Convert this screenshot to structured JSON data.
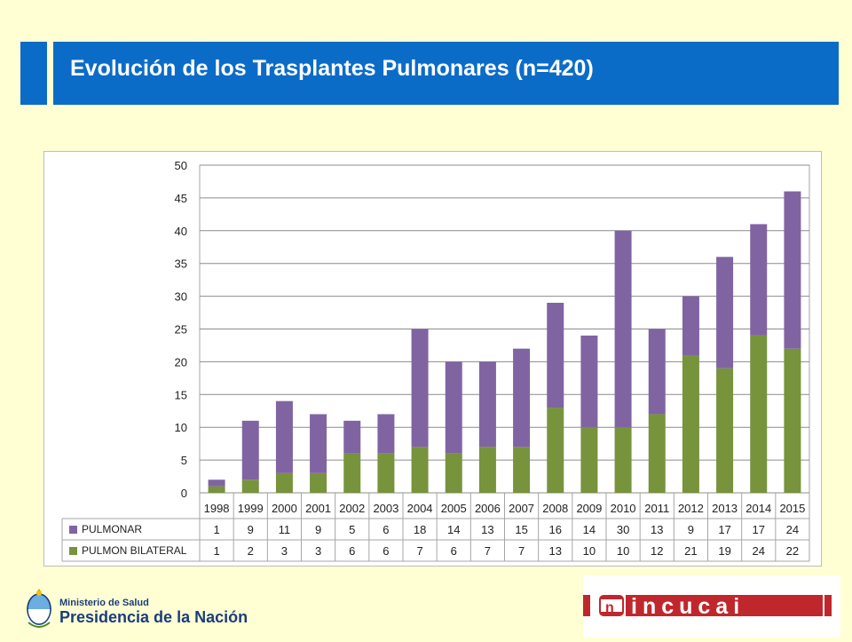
{
  "slide": {
    "title": "Evolución de los Trasplantes Pulmonares  (n=420)"
  },
  "footer": {
    "ministry_line1": "Ministerio de Salud",
    "ministry_line2": "Presidencia de la Nación",
    "crest_icon": "argentina-coat-of-arms-icon",
    "logo_icon": "incucai-logo-icon",
    "logo_text": "incucai"
  },
  "colors": {
    "title_bar": "#0b6cc7",
    "pulmonar": "#8064a2",
    "bilateral": "#77933c",
    "background": "#ffffd3"
  },
  "chart_data": {
    "type": "bar",
    "stacked": true,
    "categories": [
      "1998",
      "1999",
      "2000",
      "2001",
      "2002",
      "2003",
      "2004",
      "2005",
      "2006",
      "2007",
      "2008",
      "2009",
      "2010",
      "2011",
      "2012",
      "2013",
      "2014",
      "2015"
    ],
    "series": [
      {
        "name": "PULMON BILATERAL",
        "color": "#77933c",
        "values": [
          1,
          2,
          3,
          3,
          6,
          6,
          7,
          6,
          7,
          7,
          13,
          10,
          10,
          12,
          21,
          19,
          24,
          22
        ]
      },
      {
        "name": "PULMONAR",
        "color": "#8064a2",
        "values": [
          1,
          9,
          11,
          9,
          5,
          6,
          18,
          14,
          13,
          15,
          16,
          14,
          30,
          13,
          9,
          17,
          17,
          24
        ]
      }
    ],
    "table_rows": [
      "PULMONAR",
      "PULMON BILATERAL"
    ],
    "ylim": [
      0,
      50
    ],
    "yticks": [
      0,
      5,
      10,
      15,
      20,
      25,
      30,
      35,
      40,
      45,
      50
    ],
    "grid": true,
    "legend": "data-table"
  }
}
